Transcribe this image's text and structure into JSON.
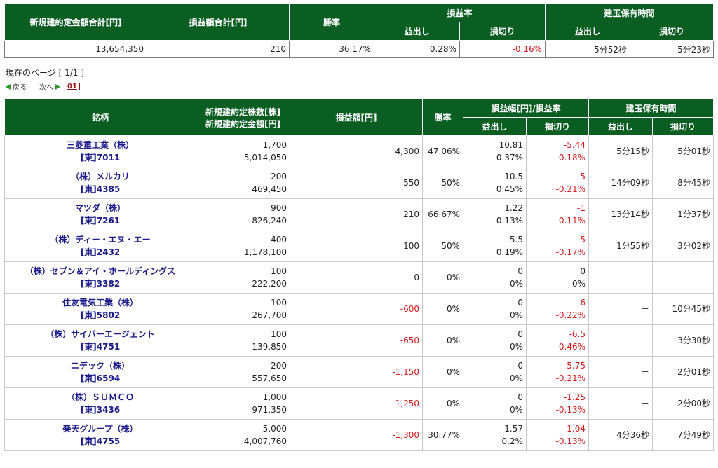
{
  "summary": {
    "headers": {
      "total_amount": "新規建約定金額合計[円]",
      "total_pl": "損益額合計[円]",
      "win_rate": "勝率",
      "pl_rate": "損益率",
      "holding_time": "建玉保有時間",
      "profit": "益出し",
      "loss": "損切り"
    },
    "values": {
      "total_amount": "13,654,350",
      "total_pl": "210",
      "win_rate": "36.17%",
      "pl_rate_profit": "0.28%",
      "pl_rate_loss": "-0.16%",
      "hold_profit": "5分52秒",
      "hold_loss": "5分23秒"
    }
  },
  "pager": {
    "current_page": "現在のページ [ 1/1 ]",
    "back": "戻る",
    "next": "次へ",
    "page_num": "01"
  },
  "detail": {
    "headers": {
      "stock": "銘柄",
      "shares": "新規建約定株数[株]",
      "amount": "新規建約定金額[円]",
      "pl_amount": "損益額[円]",
      "win_rate": "勝率",
      "pl_width_rate": "損益幅[円]/損益率",
      "holding_time": "建玉保有時間",
      "profit": "益出し",
      "loss": "損切り"
    },
    "rows": [
      {
        "name": "三菱重工業（株）",
        "code": "[東]7011",
        "shares": "1,700",
        "amount": "5,014,050",
        "pl": "4,300",
        "win": "47.06%",
        "p_width": "10.81",
        "p_rate": "0.37%",
        "l_width": "-5.44",
        "l_rate": "-0.18%",
        "hold_p": "5分15秒",
        "hold_l": "5分01秒",
        "pl_neg": false,
        "l_neg": true
      },
      {
        "name": "（株）メルカリ",
        "code": "[東]4385",
        "shares": "200",
        "amount": "469,450",
        "pl": "550",
        "win": "50%",
        "p_width": "10.5",
        "p_rate": "0.45%",
        "l_width": "-5",
        "l_rate": "-0.21%",
        "hold_p": "14分09秒",
        "hold_l": "8分45秒",
        "pl_neg": false,
        "l_neg": true
      },
      {
        "name": "マツダ（株）",
        "code": "[東]7261",
        "shares": "900",
        "amount": "826,240",
        "pl": "210",
        "win": "66.67%",
        "p_width": "1.22",
        "p_rate": "0.13%",
        "l_width": "-1",
        "l_rate": "-0.11%",
        "hold_p": "13分14秒",
        "hold_l": "1分37秒",
        "pl_neg": false,
        "l_neg": true
      },
      {
        "name": "（株）ディー・エヌ・エー",
        "code": "[東]2432",
        "shares": "400",
        "amount": "1,178,100",
        "pl": "100",
        "win": "50%",
        "p_width": "5.5",
        "p_rate": "0.19%",
        "l_width": "-5",
        "l_rate": "-0.17%",
        "hold_p": "1分55秒",
        "hold_l": "3分02秒",
        "pl_neg": false,
        "l_neg": true
      },
      {
        "name": "（株）セブン＆アイ・ホールディングス",
        "code": "[東]3382",
        "shares": "100",
        "amount": "222,200",
        "pl": "0",
        "win": "0%",
        "p_width": "0",
        "p_rate": "0%",
        "l_width": "0",
        "l_rate": "0%",
        "hold_p": "－",
        "hold_l": "－",
        "pl_neg": false,
        "l_neg": false
      },
      {
        "name": "住友電気工業（株）",
        "code": "[東]5802",
        "shares": "100",
        "amount": "267,700",
        "pl": "-600",
        "win": "0%",
        "p_width": "0",
        "p_rate": "0%",
        "l_width": "-6",
        "l_rate": "-0.22%",
        "hold_p": "－",
        "hold_l": "10分45秒",
        "pl_neg": true,
        "l_neg": true
      },
      {
        "name": "（株）サイバーエージェント",
        "code": "[東]4751",
        "shares": "100",
        "amount": "139,850",
        "pl": "-650",
        "win": "0%",
        "p_width": "0",
        "p_rate": "0%",
        "l_width": "-6.5",
        "l_rate": "-0.46%",
        "hold_p": "－",
        "hold_l": "3分30秒",
        "pl_neg": true,
        "l_neg": true
      },
      {
        "name": "ニデック（株）",
        "code": "[東]6594",
        "shares": "200",
        "amount": "557,650",
        "pl": "-1,150",
        "win": "0%",
        "p_width": "0",
        "p_rate": "0%",
        "l_width": "-5.75",
        "l_rate": "-0.21%",
        "hold_p": "－",
        "hold_l": "2分01秒",
        "pl_neg": true,
        "l_neg": true
      },
      {
        "name": "（株）ＳＵＭＣＯ",
        "code": "[東]3436",
        "shares": "1,000",
        "amount": "971,350",
        "pl": "-1,250",
        "win": "0%",
        "p_width": "0",
        "p_rate": "0%",
        "l_width": "-1.25",
        "l_rate": "-0.13%",
        "hold_p": "－",
        "hold_l": "2分00秒",
        "pl_neg": true,
        "l_neg": true
      },
      {
        "name": "楽天グループ（株）",
        "code": "[東]4755",
        "shares": "5,000",
        "amount": "4,007,760",
        "pl": "-1,300",
        "win": "30.77%",
        "p_width": "1.57",
        "p_rate": "0.2%",
        "l_width": "-1.04",
        "l_rate": "-0.13%",
        "hold_p": "4分36秒",
        "hold_l": "7分49秒",
        "pl_neg": true,
        "l_neg": true
      }
    ]
  },
  "colors": {
    "header_green": "#0b5e22",
    "negative_red": "#d81a1a",
    "link_blue": "#1a1a8c"
  }
}
